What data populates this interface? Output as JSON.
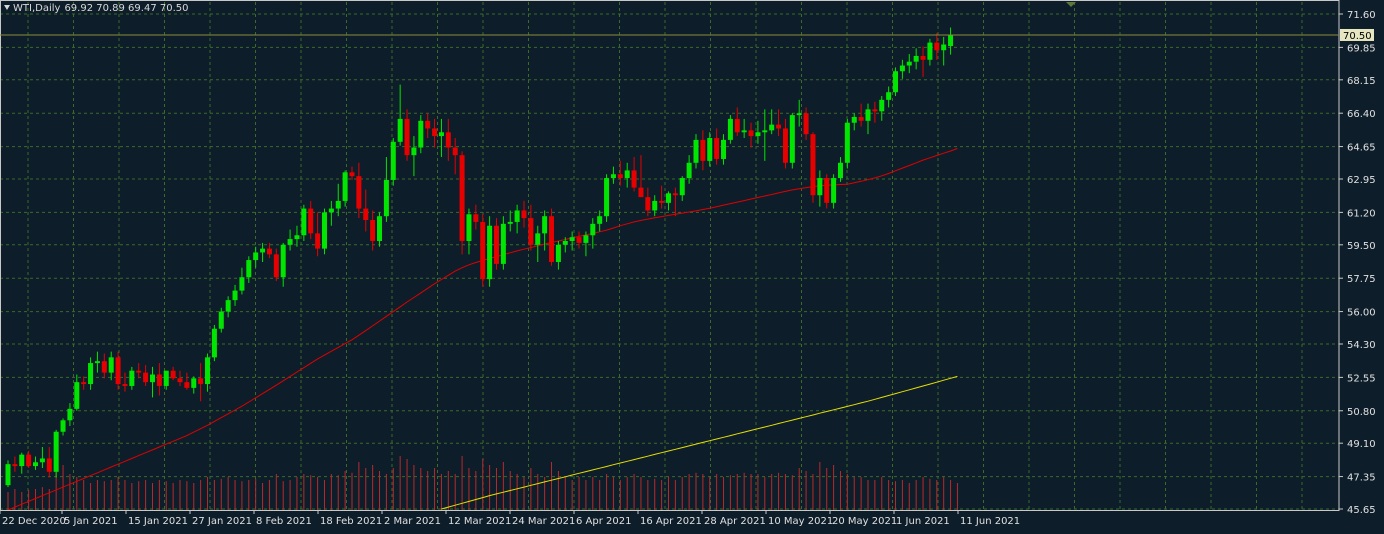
{
  "header": {
    "symbol_label": "WTI,Daily",
    "ohlc": "69.92 70.89 69.47 70.50"
  },
  "colors": {
    "background": "#0e1d2a",
    "grid": "#3a6b2a",
    "bull": "#00e600",
    "bear": "#e60000",
    "ma_short": "#e00000",
    "ma_long": "#e6e000",
    "volume": "#b82a2a",
    "last_price_line": "#8a8a3a",
    "axis_text": "#e0e0e0"
  },
  "chart_data": {
    "type": "candlestick",
    "title": "WTI,Daily",
    "last_price": 70.5,
    "ylim": [
      45.65,
      71.6
    ],
    "y_ticks": [
      "71.60",
      "69.85",
      "68.15",
      "66.40",
      "64.65",
      "62.95",
      "61.20",
      "59.50",
      "57.75",
      "56.00",
      "54.30",
      "52.55",
      "50.80",
      "49.10",
      "47.35",
      "45.65"
    ],
    "x_tick_labels": [
      "22 Dec 2020",
      "5 Jan 2021",
      "15 Jan 2021",
      "27 Jan 2021",
      "8 Feb 2021",
      "18 Feb 2021",
      "2 Mar 2021",
      "12 Mar 2021",
      "24 Mar 2021",
      "6 Apr 2021",
      "16 Apr 2021",
      "28 Apr 2021",
      "10 May 2021",
      "20 May 2021",
      "1 Jun 2021",
      "11 Jun 2021"
    ],
    "grid": true,
    "candles": [
      {
        "o": 46.9,
        "h": 48.2,
        "l": 46.8,
        "c": 48.0
      },
      {
        "o": 48.0,
        "h": 48.4,
        "l": 47.6,
        "c": 47.9
      },
      {
        "o": 47.9,
        "h": 48.6,
        "l": 47.5,
        "c": 48.5
      },
      {
        "o": 48.5,
        "h": 48.7,
        "l": 47.8,
        "c": 47.9
      },
      {
        "o": 47.9,
        "h": 48.4,
        "l": 47.7,
        "c": 48.1
      },
      {
        "o": 48.1,
        "h": 48.9,
        "l": 47.8,
        "c": 48.3
      },
      {
        "o": 48.3,
        "h": 48.9,
        "l": 47.3,
        "c": 47.6
      },
      {
        "o": 47.6,
        "h": 49.8,
        "l": 47.3,
        "c": 49.7
      },
      {
        "o": 49.7,
        "h": 50.4,
        "l": 49.5,
        "c": 50.3
      },
      {
        "o": 50.3,
        "h": 51.2,
        "l": 50.0,
        "c": 50.9
      },
      {
        "o": 50.9,
        "h": 52.7,
        "l": 50.8,
        "c": 52.3
      },
      {
        "o": 52.3,
        "h": 52.6,
        "l": 51.9,
        "c": 52.2
      },
      {
        "o": 52.2,
        "h": 53.6,
        "l": 51.9,
        "c": 53.3
      },
      {
        "o": 53.3,
        "h": 53.9,
        "l": 52.8,
        "c": 53.4
      },
      {
        "o": 53.4,
        "h": 53.8,
        "l": 52.5,
        "c": 52.8
      },
      {
        "o": 52.8,
        "h": 53.9,
        "l": 52.4,
        "c": 53.6
      },
      {
        "o": 53.6,
        "h": 53.9,
        "l": 51.9,
        "c": 52.2
      },
      {
        "o": 52.2,
        "h": 52.8,
        "l": 51.8,
        "c": 52.1
      },
      {
        "o": 52.1,
        "h": 53.1,
        "l": 51.9,
        "c": 52.9
      },
      {
        "o": 52.9,
        "h": 53.3,
        "l": 52.5,
        "c": 52.8
      },
      {
        "o": 52.8,
        "h": 53.2,
        "l": 52.1,
        "c": 52.3
      },
      {
        "o": 52.3,
        "h": 53.1,
        "l": 51.5,
        "c": 52.7
      },
      {
        "o": 52.7,
        "h": 53.3,
        "l": 51.6,
        "c": 52.1
      },
      {
        "o": 52.1,
        "h": 52.9,
        "l": 51.9,
        "c": 52.9
      },
      {
        "o": 52.9,
        "h": 53.1,
        "l": 52.4,
        "c": 52.5
      },
      {
        "o": 52.5,
        "h": 52.9,
        "l": 52.1,
        "c": 52.3
      },
      {
        "o": 52.3,
        "h": 52.8,
        "l": 51.9,
        "c": 52.0
      },
      {
        "o": 52.0,
        "h": 52.6,
        "l": 51.7,
        "c": 52.5
      },
      {
        "o": 52.5,
        "h": 53.3,
        "l": 51.3,
        "c": 52.2
      },
      {
        "o": 52.2,
        "h": 53.8,
        "l": 51.8,
        "c": 53.6
      },
      {
        "o": 53.6,
        "h": 55.3,
        "l": 53.4,
        "c": 55.1
      },
      {
        "o": 55.1,
        "h": 56.2,
        "l": 54.9,
        "c": 56.0
      },
      {
        "o": 56.0,
        "h": 56.8,
        "l": 55.7,
        "c": 56.6
      },
      {
        "o": 56.6,
        "h": 57.4,
        "l": 56.3,
        "c": 57.1
      },
      {
        "o": 57.1,
        "h": 58.3,
        "l": 56.9,
        "c": 57.8
      },
      {
        "o": 57.8,
        "h": 58.9,
        "l": 57.5,
        "c": 58.7
      },
      {
        "o": 58.7,
        "h": 59.4,
        "l": 58.3,
        "c": 59.1
      },
      {
        "o": 59.1,
        "h": 59.6,
        "l": 58.6,
        "c": 59.3
      },
      {
        "o": 59.3,
        "h": 59.6,
        "l": 58.8,
        "c": 59.0
      },
      {
        "o": 59.0,
        "h": 59.3,
        "l": 57.6,
        "c": 57.8
      },
      {
        "o": 57.8,
        "h": 59.6,
        "l": 57.3,
        "c": 59.5
      },
      {
        "o": 59.5,
        "h": 60.3,
        "l": 59.2,
        "c": 59.8
      },
      {
        "o": 59.8,
        "h": 60.5,
        "l": 59.4,
        "c": 60.0
      },
      {
        "o": 60.0,
        "h": 61.6,
        "l": 59.7,
        "c": 61.4
      },
      {
        "o": 61.4,
        "h": 61.8,
        "l": 59.8,
        "c": 60.1
      },
      {
        "o": 60.1,
        "h": 61.2,
        "l": 58.9,
        "c": 59.3
      },
      {
        "o": 59.3,
        "h": 61.4,
        "l": 59.0,
        "c": 61.2
      },
      {
        "o": 61.2,
        "h": 61.8,
        "l": 60.5,
        "c": 61.4
      },
      {
        "o": 61.4,
        "h": 62.7,
        "l": 61.0,
        "c": 61.8
      },
      {
        "o": 61.8,
        "h": 63.4,
        "l": 61.5,
        "c": 63.3
      },
      {
        "o": 63.3,
        "h": 63.6,
        "l": 62.9,
        "c": 63.1
      },
      {
        "o": 63.1,
        "h": 63.8,
        "l": 60.9,
        "c": 61.4
      },
      {
        "o": 61.4,
        "h": 62.4,
        "l": 60.2,
        "c": 60.8
      },
      {
        "o": 60.8,
        "h": 61.3,
        "l": 59.2,
        "c": 59.7
      },
      {
        "o": 59.7,
        "h": 61.2,
        "l": 59.4,
        "c": 61.0
      },
      {
        "o": 61.0,
        "h": 64.1,
        "l": 60.7,
        "c": 62.9
      },
      {
        "o": 62.9,
        "h": 65.1,
        "l": 62.6,
        "c": 64.9
      },
      {
        "o": 64.9,
        "h": 67.9,
        "l": 64.7,
        "c": 66.1
      },
      {
        "o": 66.1,
        "h": 66.6,
        "l": 63.9,
        "c": 64.2
      },
      {
        "o": 64.2,
        "h": 65.2,
        "l": 63.1,
        "c": 64.6
      },
      {
        "o": 64.6,
        "h": 66.3,
        "l": 64.3,
        "c": 66.0
      },
      {
        "o": 66.0,
        "h": 66.4,
        "l": 65.1,
        "c": 65.6
      },
      {
        "o": 65.6,
        "h": 66.1,
        "l": 64.6,
        "c": 65.2
      },
      {
        "o": 65.2,
        "h": 66.1,
        "l": 64.1,
        "c": 65.4
      },
      {
        "o": 65.4,
        "h": 66.1,
        "l": 63.9,
        "c": 64.6
      },
      {
        "o": 64.6,
        "h": 65.1,
        "l": 63.2,
        "c": 64.2
      },
      {
        "o": 64.2,
        "h": 64.4,
        "l": 59.0,
        "c": 59.7
      },
      {
        "o": 59.7,
        "h": 61.4,
        "l": 59.0,
        "c": 61.1
      },
      {
        "o": 61.1,
        "h": 61.6,
        "l": 60.3,
        "c": 60.7
      },
      {
        "o": 60.7,
        "h": 61.1,
        "l": 57.3,
        "c": 57.7
      },
      {
        "o": 57.7,
        "h": 61.0,
        "l": 57.3,
        "c": 60.5
      },
      {
        "o": 60.5,
        "h": 60.9,
        "l": 58.2,
        "c": 58.5
      },
      {
        "o": 58.5,
        "h": 61.0,
        "l": 58.2,
        "c": 60.6
      },
      {
        "o": 60.6,
        "h": 61.3,
        "l": 60.2,
        "c": 60.7
      },
      {
        "o": 60.7,
        "h": 61.6,
        "l": 60.1,
        "c": 61.3
      },
      {
        "o": 61.3,
        "h": 61.8,
        "l": 60.4,
        "c": 60.9
      },
      {
        "o": 60.9,
        "h": 61.6,
        "l": 59.2,
        "c": 59.5
      },
      {
        "o": 59.5,
        "h": 60.5,
        "l": 58.6,
        "c": 60.1
      },
      {
        "o": 60.1,
        "h": 61.3,
        "l": 59.2,
        "c": 61.0
      },
      {
        "o": 61.0,
        "h": 61.4,
        "l": 58.4,
        "c": 58.6
      },
      {
        "o": 58.6,
        "h": 59.7,
        "l": 58.2,
        "c": 59.5
      },
      {
        "o": 59.5,
        "h": 59.9,
        "l": 59.1,
        "c": 59.7
      },
      {
        "o": 59.7,
        "h": 60.2,
        "l": 59.2,
        "c": 59.9
      },
      {
        "o": 59.9,
        "h": 60.2,
        "l": 59.3,
        "c": 59.6
      },
      {
        "o": 59.6,
        "h": 60.2,
        "l": 58.9,
        "c": 60.0
      },
      {
        "o": 60.0,
        "h": 60.9,
        "l": 59.3,
        "c": 60.6
      },
      {
        "o": 60.6,
        "h": 61.3,
        "l": 60.2,
        "c": 61.0
      },
      {
        "o": 61.0,
        "h": 63.2,
        "l": 60.7,
        "c": 63.0
      },
      {
        "o": 63.0,
        "h": 63.6,
        "l": 62.7,
        "c": 63.2
      },
      {
        "o": 63.2,
        "h": 63.9,
        "l": 62.6,
        "c": 63.0
      },
      {
        "o": 63.0,
        "h": 63.8,
        "l": 62.5,
        "c": 63.4
      },
      {
        "o": 63.4,
        "h": 64.1,
        "l": 62.3,
        "c": 62.5
      },
      {
        "o": 62.5,
        "h": 64.2,
        "l": 62.2,
        "c": 62.0
      },
      {
        "o": 62.0,
        "h": 62.5,
        "l": 61.0,
        "c": 61.3
      },
      {
        "o": 61.3,
        "h": 62.1,
        "l": 61.0,
        "c": 61.8
      },
      {
        "o": 61.8,
        "h": 62.6,
        "l": 61.4,
        "c": 61.7
      },
      {
        "o": 61.7,
        "h": 62.3,
        "l": 61.3,
        "c": 62.2
      },
      {
        "o": 62.2,
        "h": 62.5,
        "l": 61.0,
        "c": 62.1
      },
      {
        "o": 62.1,
        "h": 63.1,
        "l": 61.8,
        "c": 63.0
      },
      {
        "o": 63.0,
        "h": 64.2,
        "l": 62.7,
        "c": 63.8
      },
      {
        "o": 63.8,
        "h": 65.3,
        "l": 63.5,
        "c": 65.0
      },
      {
        "o": 65.0,
        "h": 65.5,
        "l": 63.4,
        "c": 63.9
      },
      {
        "o": 63.9,
        "h": 65.4,
        "l": 63.6,
        "c": 65.1
      },
      {
        "o": 65.1,
        "h": 65.6,
        "l": 63.7,
        "c": 64.0
      },
      {
        "o": 64.0,
        "h": 65.3,
        "l": 63.7,
        "c": 65.0
      },
      {
        "o": 65.0,
        "h": 66.3,
        "l": 64.8,
        "c": 66.1
      },
      {
        "o": 66.1,
        "h": 66.7,
        "l": 65.2,
        "c": 65.4
      },
      {
        "o": 65.4,
        "h": 66.1,
        "l": 65.1,
        "c": 65.5
      },
      {
        "o": 65.5,
        "h": 65.9,
        "l": 64.6,
        "c": 65.2
      },
      {
        "o": 65.2,
        "h": 66.0,
        "l": 64.8,
        "c": 65.4
      },
      {
        "o": 65.4,
        "h": 66.6,
        "l": 63.9,
        "c": 65.5
      },
      {
        "o": 65.5,
        "h": 66.6,
        "l": 65.3,
        "c": 65.8
      },
      {
        "o": 65.8,
        "h": 66.6,
        "l": 65.2,
        "c": 65.6
      },
      {
        "o": 65.6,
        "h": 66.1,
        "l": 63.5,
        "c": 63.8
      },
      {
        "o": 63.8,
        "h": 66.4,
        "l": 63.5,
        "c": 66.3
      },
      {
        "o": 66.3,
        "h": 67.1,
        "l": 65.7,
        "c": 66.4
      },
      {
        "o": 66.4,
        "h": 66.7,
        "l": 65.0,
        "c": 65.3
      },
      {
        "o": 65.3,
        "h": 65.4,
        "l": 61.7,
        "c": 62.1
      },
      {
        "o": 62.1,
        "h": 63.4,
        "l": 61.5,
        "c": 63.0
      },
      {
        "o": 63.0,
        "h": 63.2,
        "l": 61.4,
        "c": 61.7
      },
      {
        "o": 61.7,
        "h": 63.2,
        "l": 61.4,
        "c": 63.0
      },
      {
        "o": 63.0,
        "h": 64.1,
        "l": 62.8,
        "c": 63.8
      },
      {
        "o": 63.8,
        "h": 66.1,
        "l": 63.5,
        "c": 65.9
      },
      {
        "o": 65.9,
        "h": 66.4,
        "l": 65.5,
        "c": 66.2
      },
      {
        "o": 66.2,
        "h": 66.9,
        "l": 65.7,
        "c": 66.0
      },
      {
        "o": 66.0,
        "h": 66.9,
        "l": 65.3,
        "c": 66.6
      },
      {
        "o": 66.6,
        "h": 67.0,
        "l": 65.9,
        "c": 66.5
      },
      {
        "o": 66.5,
        "h": 67.3,
        "l": 66.0,
        "c": 67.1
      },
      {
        "o": 67.1,
        "h": 67.8,
        "l": 66.7,
        "c": 67.5
      },
      {
        "o": 67.5,
        "h": 68.8,
        "l": 67.3,
        "c": 68.6
      },
      {
        "o": 68.6,
        "h": 69.2,
        "l": 68.2,
        "c": 68.9
      },
      {
        "o": 68.9,
        "h": 69.5,
        "l": 68.5,
        "c": 69.1
      },
      {
        "o": 69.1,
        "h": 69.8,
        "l": 68.7,
        "c": 69.4
      },
      {
        "o": 69.4,
        "h": 69.9,
        "l": 68.3,
        "c": 69.2
      },
      {
        "o": 69.2,
        "h": 70.3,
        "l": 68.9,
        "c": 70.1
      },
      {
        "o": 70.1,
        "h": 70.6,
        "l": 69.2,
        "c": 69.7
      },
      {
        "o": 69.7,
        "h": 70.4,
        "l": 68.9,
        "c": 70.0
      },
      {
        "o": 69.92,
        "h": 70.89,
        "l": 69.47,
        "c": 70.5
      }
    ],
    "ma_short": [
      45.6,
      45.75,
      45.9,
      46.05,
      46.2,
      46.35,
      46.5,
      46.65,
      46.8,
      46.95,
      47.1,
      47.25,
      47.4,
      47.55,
      47.7,
      47.85,
      48.0,
      48.15,
      48.3,
      48.45,
      48.6,
      48.75,
      48.9,
      49.05,
      49.2,
      49.35,
      49.5,
      49.68,
      49.86,
      50.04,
      50.24,
      50.44,
      50.64,
      50.84,
      51.04,
      51.26,
      51.48,
      51.7,
      51.92,
      52.14,
      52.37,
      52.6,
      52.83,
      53.06,
      53.29,
      53.52,
      53.72,
      53.92,
      54.12,
      54.32,
      54.52,
      54.76,
      55.0,
      55.25,
      55.5,
      55.75,
      56.0,
      56.25,
      56.5,
      56.74,
      56.98,
      57.22,
      57.46,
      57.68,
      57.9,
      58.12,
      58.3,
      58.45,
      58.57,
      58.68,
      58.78,
      58.88,
      58.98,
      59.08,
      59.18,
      59.27,
      59.36,
      59.45,
      59.54,
      59.62,
      59.7,
      59.78,
      59.86,
      59.94,
      60.02,
      60.1,
      60.18,
      60.27,
      60.38,
      60.5,
      60.6,
      60.7,
      60.78,
      60.85,
      60.92,
      60.98,
      61.04,
      61.1,
      61.16,
      61.22,
      61.28,
      61.35,
      61.42,
      61.5,
      61.58,
      61.66,
      61.74,
      61.82,
      61.9,
      61.98,
      62.06,
      62.14,
      62.22,
      62.3,
      62.38,
      62.44,
      62.5,
      62.55,
      62.6,
      62.62,
      62.64,
      62.66,
      62.68,
      62.75,
      62.83,
      62.92,
      63.01,
      63.12,
      63.24,
      63.38,
      63.52,
      63.66,
      63.8,
      63.94,
      64.06,
      64.18,
      64.3,
      64.42,
      64.55
    ],
    "ma_long": [
      null,
      null,
      null,
      null,
      null,
      null,
      null,
      null,
      null,
      null,
      null,
      null,
      null,
      null,
      null,
      null,
      null,
      null,
      null,
      null,
      null,
      null,
      null,
      null,
      null,
      null,
      null,
      null,
      null,
      null,
      null,
      null,
      null,
      null,
      null,
      null,
      null,
      null,
      null,
      null,
      null,
      null,
      null,
      null,
      null,
      null,
      null,
      null,
      null,
      null,
      null,
      null,
      null,
      null,
      null,
      null,
      null,
      null,
      null,
      null,
      null,
      null,
      null,
      45.65,
      45.75,
      45.85,
      45.95,
      46.05,
      46.15,
      46.25,
      46.35,
      46.44,
      46.53,
      46.62,
      46.71,
      46.8,
      46.89,
      46.98,
      47.07,
      47.16,
      47.25,
      47.34,
      47.43,
      47.52,
      47.61,
      47.7,
      47.79,
      47.88,
      47.97,
      48.06,
      48.15,
      48.24,
      48.33,
      48.42,
      48.51,
      48.6,
      48.69,
      48.78,
      48.87,
      48.96,
      49.05,
      49.14,
      49.23,
      49.32,
      49.41,
      49.5,
      49.59,
      49.68,
      49.77,
      49.86,
      49.95,
      50.04,
      50.13,
      50.22,
      50.31,
      50.4,
      50.49,
      50.58,
      50.67,
      50.76,
      50.85,
      50.94,
      51.03,
      51.12,
      51.21,
      51.3,
      51.4,
      51.5,
      51.6,
      51.7,
      51.8,
      51.9,
      52.0,
      52.1,
      52.2,
      52.3,
      52.4,
      52.5,
      52.6
    ],
    "volume_rel": [
      0.3,
      0.35,
      0.3,
      0.33,
      0.35,
      0.38,
      0.35,
      0.9,
      0.75,
      0.6,
      0.55,
      0.5,
      0.45,
      0.5,
      0.48,
      0.5,
      0.55,
      0.5,
      0.45,
      0.48,
      0.5,
      0.45,
      0.5,
      0.48,
      0.45,
      0.5,
      0.48,
      0.45,
      0.5,
      0.55,
      0.5,
      0.52,
      0.55,
      0.5,
      0.48,
      0.5,
      0.52,
      0.45,
      0.5,
      0.6,
      0.48,
      0.5,
      0.55,
      0.6,
      0.58,
      0.55,
      0.5,
      0.6,
      0.58,
      0.65,
      0.62,
      0.8,
      0.7,
      0.75,
      0.65,
      0.6,
      0.7,
      0.9,
      0.85,
      0.75,
      0.7,
      0.65,
      0.7,
      0.6,
      0.65,
      0.6,
      0.9,
      0.7,
      0.65,
      0.85,
      0.75,
      0.7,
      0.8,
      0.65,
      0.6,
      0.55,
      0.7,
      0.6,
      0.55,
      0.8,
      0.65,
      0.55,
      0.5,
      0.55,
      0.5,
      0.55,
      0.5,
      0.6,
      0.55,
      0.5,
      0.55,
      0.6,
      0.55,
      0.5,
      0.52,
      0.5,
      0.55,
      0.5,
      0.55,
      0.6,
      0.62,
      0.6,
      0.55,
      0.6,
      0.55,
      0.58,
      0.6,
      0.62,
      0.6,
      0.6,
      0.55,
      0.6,
      0.62,
      0.6,
      0.58,
      0.7,
      0.65,
      0.6,
      0.8,
      0.7,
      0.75,
      0.65,
      0.6,
      0.55,
      0.55,
      0.5,
      0.5,
      0.55,
      0.5,
      0.48,
      0.5,
      0.45,
      0.5,
      0.55,
      0.52,
      0.5,
      0.55,
      0.5,
      0.45
    ]
  }
}
